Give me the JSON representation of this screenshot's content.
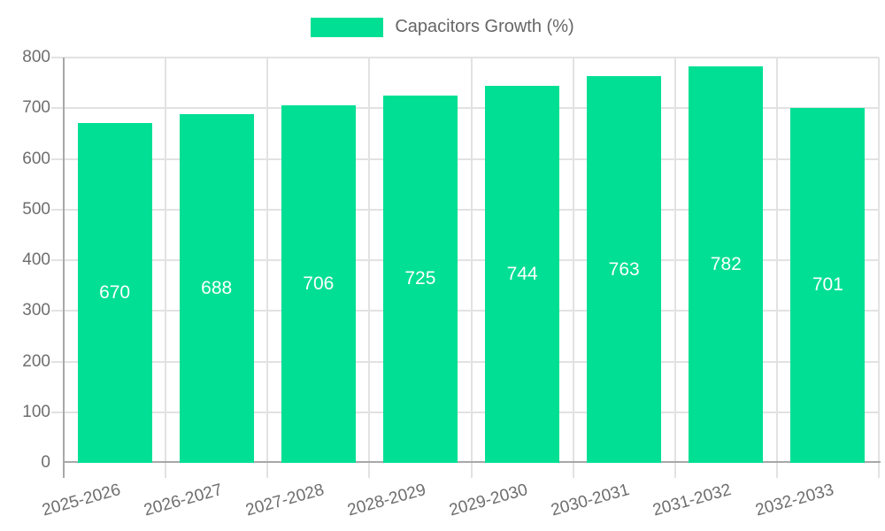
{
  "legend": {
    "label": "Capacitors Growth (%)"
  },
  "colors": {
    "bar": "#00DF93",
    "value_label": "#ffffff",
    "grid_line": "#e2e2e2",
    "axis_line": "#a8a8a8",
    "tick_label": "#6e6e6e",
    "legend_text": "#666666"
  },
  "chart_data": {
    "type": "bar",
    "title": "",
    "xlabel": "",
    "ylabel": "",
    "categories": [
      "2025-2026",
      "2026-2027",
      "2027-2028",
      "2028-2029",
      "2029-2030",
      "2030-2031",
      "2031-2032",
      "2032-2033"
    ],
    "series": [
      {
        "name": "Capacitors Growth (%)",
        "values": [
          670,
          688,
          706,
          725,
          744,
          763,
          782,
          701
        ]
      }
    ],
    "ylim": [
      0,
      800
    ],
    "ytick_step": 100,
    "grid": true,
    "legend_position": "top-center",
    "value_labels": "inside-center",
    "x_label_rotation_deg": -15.5
  }
}
